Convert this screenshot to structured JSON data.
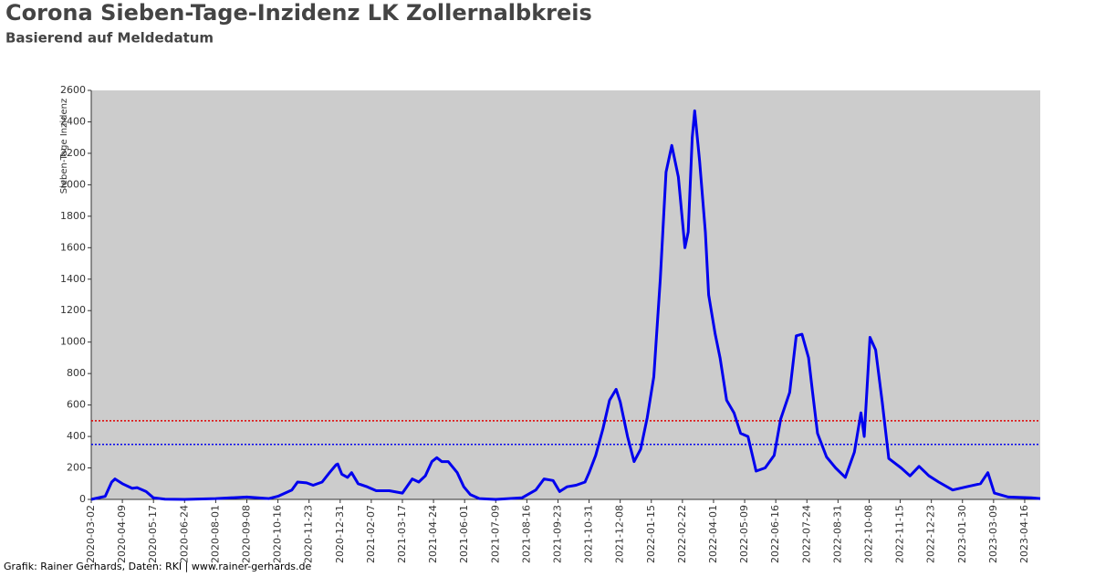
{
  "chart_data": {
    "type": "line",
    "title": "Corona Sieben-Tage-Inzidenz LK Zollernalbkreis",
    "subtitle": "Basierend auf Meldedatum",
    "y_label": "Sieben-Tage Inzidenz",
    "footer": "Grafik: Rainer Gerhards, Daten: RKI | www.rainer-gerhards.de",
    "x": [
      "2020-03-02",
      "2020-03-19",
      "2020-03-27",
      "2020-03-31",
      "2020-04-09",
      "2020-04-21",
      "2020-04-27",
      "2020-05-08",
      "2020-05-17",
      "2020-05-31",
      "2020-06-24",
      "2020-08-01",
      "2020-09-08",
      "2020-10-05",
      "2020-10-16",
      "2020-11-02",
      "2020-11-09",
      "2020-11-20",
      "2020-11-28",
      "2020-12-09",
      "2020-12-18",
      "2020-12-26",
      "2020-12-28",
      "2021-01-02",
      "2021-01-09",
      "2021-01-14",
      "2021-01-22",
      "2021-02-02",
      "2021-02-13",
      "2021-03-01",
      "2021-03-17",
      "2021-03-29",
      "2021-04-06",
      "2021-04-14",
      "2021-04-22",
      "2021-04-28",
      "2021-05-04",
      "2021-05-12",
      "2021-05-23",
      "2021-05-31",
      "2021-06-08",
      "2021-06-19",
      "2021-07-09",
      "2021-08-10",
      "2021-08-27",
      "2021-09-06",
      "2021-09-17",
      "2021-09-25",
      "2021-10-04",
      "2021-10-15",
      "2021-10-26",
      "2021-10-31",
      "2021-11-08",
      "2021-11-17",
      "2021-11-25",
      "2021-12-03",
      "2021-12-08",
      "2021-12-17",
      "2021-12-25",
      "2022-01-02",
      "2022-01-10",
      "2022-01-18",
      "2022-01-26",
      "2022-02-02",
      "2022-02-09",
      "2022-02-17",
      "2022-02-25",
      "2022-03-01",
      "2022-03-06",
      "2022-03-09",
      "2022-03-15",
      "2022-03-22",
      "2022-03-26",
      "2022-04-03",
      "2022-04-09",
      "2022-04-17",
      "2022-04-26",
      "2022-05-04",
      "2022-05-13",
      "2022-05-23",
      "2022-06-03",
      "2022-06-14",
      "2022-06-22",
      "2022-07-03",
      "2022-07-11",
      "2022-07-18",
      "2022-07-26",
      "2022-07-31",
      "2022-08-06",
      "2022-08-17",
      "2022-08-28",
      "2022-09-09",
      "2022-09-20",
      "2022-09-28",
      "2022-10-02",
      "2022-10-09",
      "2022-10-16",
      "2022-10-24",
      "2022-11-01",
      "2022-11-16",
      "2022-11-27",
      "2022-12-08",
      "2022-12-20",
      "2023-01-01",
      "2023-01-18",
      "2023-02-04",
      "2023-02-21",
      "2023-03-02",
      "2023-03-10",
      "2023-03-27",
      "2023-04-24",
      "2023-05-05"
    ],
    "series": [
      {
        "name": "Sieben-Tage Inzidenz",
        "color": "#0000ee",
        "values": [
          0,
          20,
          110,
          130,
          100,
          70,
          75,
          50,
          10,
          2,
          0,
          5,
          15,
          5,
          20,
          60,
          110,
          105,
          90,
          110,
          170,
          220,
          225,
          160,
          140,
          170,
          100,
          80,
          55,
          55,
          40,
          130,
          110,
          150,
          240,
          265,
          240,
          240,
          170,
          80,
          30,
          5,
          0,
          10,
          60,
          130,
          120,
          50,
          80,
          90,
          110,
          170,
          280,
          450,
          630,
          700,
          620,
          400,
          240,
          320,
          520,
          780,
          1400,
          2080,
          2250,
          2050,
          1600,
          1700,
          2300,
          2470,
          2150,
          1700,
          1300,
          1050,
          900,
          630,
          550,
          420,
          400,
          180,
          200,
          280,
          510,
          680,
          1040,
          1050,
          900,
          680,
          420,
          270,
          200,
          140,
          300,
          550,
          400,
          1030,
          950,
          620,
          260,
          200,
          150,
          210,
          150,
          110,
          60,
          80,
          100,
          170,
          40,
          15,
          10,
          5
        ]
      }
    ],
    "reference_lines": [
      {
        "value": 500,
        "color": "#e00000"
      },
      {
        "value": 350,
        "color": "#0000ee"
      }
    ],
    "xlim": [
      "2020-03-02",
      "2023-05-05"
    ],
    "xticks": [
      "2020-03-02",
      "2020-04-09",
      "2020-05-17",
      "2020-06-24",
      "2020-08-01",
      "2020-09-08",
      "2020-10-16",
      "2020-11-23",
      "2020-12-31",
      "2021-02-07",
      "2021-03-17",
      "2021-04-24",
      "2021-06-01",
      "2021-07-09",
      "2021-08-16",
      "2021-09-23",
      "2021-10-31",
      "2021-12-08",
      "2022-01-15",
      "2022-02-22",
      "2022-04-01",
      "2022-05-09",
      "2022-06-16",
      "2022-07-24",
      "2022-08-31",
      "2022-10-08",
      "2022-11-15",
      "2022-12-23",
      "2023-01-30",
      "2023-03-09",
      "2023-04-16"
    ],
    "ylim": [
      0,
      2600
    ],
    "yticks": [
      0,
      200,
      400,
      600,
      800,
      1000,
      1200,
      1400,
      1600,
      1800,
      2000,
      2200,
      2400,
      2600
    ],
    "plot_background": "#cccccc"
  }
}
